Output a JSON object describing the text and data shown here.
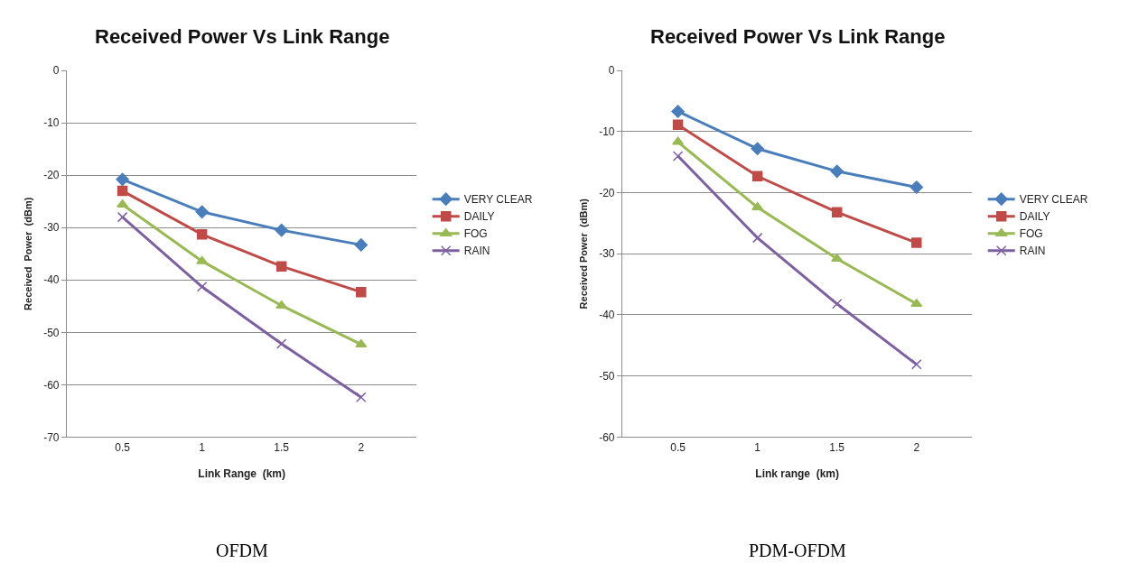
{
  "chart_data": [
    {
      "type": "line",
      "title": "Received Power Vs Link Range",
      "xlabel": "Link Range  (km)",
      "ylabel": "Received  Power  (dBm)",
      "categories": [
        "0.5",
        "1",
        "1.5",
        "2"
      ],
      "ylim": [
        -70,
        0
      ],
      "yticks": [
        0,
        -10,
        -20,
        -30,
        -40,
        -50,
        -60,
        -70
      ],
      "grid": "y",
      "legend": "right",
      "annotations": [
        "OFDM"
      ],
      "series": [
        {
          "name": "VERY CLEAR",
          "color": "#4a7ebb",
          "marker": "diamond",
          "values": [
            -20.8,
            -27,
            -30.5,
            -33.3
          ]
        },
        {
          "name": "DAILY",
          "color": "#be4b48",
          "marker": "square",
          "values": [
            -23,
            -31.3,
            -37.4,
            -42.3
          ]
        },
        {
          "name": "FOG",
          "color": "#98b954",
          "marker": "triangle",
          "values": [
            -25.6,
            -36.4,
            -44.9,
            -52.3
          ]
        },
        {
          "name": "RAIN",
          "color": "#7d60a0",
          "marker": "cross",
          "values": [
            -28,
            -41.3,
            -52.2,
            -62.4
          ]
        }
      ]
    },
    {
      "type": "line",
      "title": "Received Power Vs Link Range",
      "xlabel": "Link range  (km)",
      "ylabel": "Received Power  (dBm)",
      "categories": [
        "0.5",
        "1",
        "1.5",
        "2"
      ],
      "ylim": [
        -60,
        0
      ],
      "yticks": [
        0,
        -10,
        -20,
        -30,
        -40,
        -50,
        -60
      ],
      "grid": "y",
      "legend": "right",
      "annotations": [
        "PDM-OFDM"
      ],
      "series": [
        {
          "name": "VERY CLEAR",
          "color": "#4a7ebb",
          "marker": "diamond",
          "values": [
            -6.7,
            -12.8,
            -16.5,
            -19.1
          ]
        },
        {
          "name": "DAILY",
          "color": "#be4b48",
          "marker": "square",
          "values": [
            -8.9,
            -17.3,
            -23.2,
            -28.2
          ]
        },
        {
          "name": "FOG",
          "color": "#98b954",
          "marker": "triangle",
          "values": [
            -11.7,
            -22.4,
            -30.8,
            -38.2
          ]
        },
        {
          "name": "RAIN",
          "color": "#7d60a0",
          "marker": "cross",
          "values": [
            -14,
            -27.4,
            -38.2,
            -48.1
          ]
        }
      ]
    }
  ]
}
